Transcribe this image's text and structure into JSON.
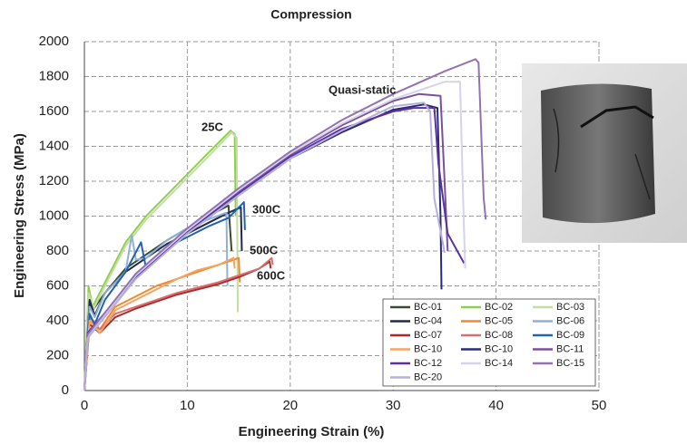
{
  "chart_data": {
    "type": "line",
    "title": "Compression",
    "x_label": "Engineering Strain (%)",
    "y_label": "Engineering Stress (MPa)",
    "xlim": [
      0,
      50
    ],
    "xticks": [
      0,
      10,
      20,
      30,
      40,
      50
    ],
    "ylim": [
      0,
      2000
    ],
    "yticks": [
      0,
      200,
      400,
      600,
      800,
      1000,
      1200,
      1400,
      1600,
      1800,
      2000
    ],
    "grid": true,
    "legend_position": "lower right",
    "annotations": [
      "25C",
      "300C",
      "500C",
      "600C",
      "Quasi-static"
    ],
    "series": [
      {
        "name": "BC-01",
        "color": "#3d4b33",
        "x": [
          0,
          0.4,
          0.8,
          2,
          4,
          6,
          8,
          10,
          12,
          14,
          14.3
        ],
        "values": [
          0,
          520,
          460,
          560,
          700,
          780,
          860,
          930,
          1000,
          1060,
          800
        ]
      },
      {
        "name": "BC-02",
        "color": "#8fcf50",
        "x": [
          0,
          0.4,
          0.8,
          2,
          4,
          6,
          8,
          10,
          12,
          14.2,
          14.6,
          14.7
        ],
        "values": [
          0,
          600,
          480,
          620,
          850,
          1000,
          1120,
          1240,
          1360,
          1490,
          1470,
          1000
        ]
      },
      {
        "name": "BC-03",
        "color": "#c3dea0",
        "x": [
          0,
          0.4,
          0.9,
          2,
          4,
          6,
          8,
          10,
          12,
          14.3,
          14.8,
          14.9
        ],
        "values": [
          0,
          560,
          470,
          600,
          830,
          980,
          1100,
          1220,
          1340,
          1480,
          1450,
          450
        ]
      },
      {
        "name": "BC-04",
        "color": "#1f2b4a",
        "x": [
          0,
          0.5,
          1,
          2,
          4,
          6,
          8,
          10,
          12,
          14,
          15.2,
          15.3
        ],
        "values": [
          0,
          520,
          430,
          560,
          680,
          760,
          840,
          900,
          960,
          1020,
          1050,
          800
        ]
      },
      {
        "name": "BC-05",
        "color": "#f08a2c",
        "x": [
          0,
          0.5,
          1.5,
          3,
          5,
          7,
          9,
          11,
          13,
          15,
          15.1
        ],
        "values": [
          0,
          420,
          350,
          480,
          540,
          600,
          640,
          680,
          720,
          760,
          620
        ]
      },
      {
        "name": "BC-06",
        "color": "#8fb0d8",
        "x": [
          0,
          0.5,
          1,
          2,
          4,
          4.6,
          5,
          6,
          8,
          10,
          12,
          13.8,
          13.9
        ],
        "values": [
          0,
          480,
          420,
          560,
          680,
          890,
          750,
          760,
          860,
          930,
          980,
          1020,
          600
        ]
      },
      {
        "name": "BC-07",
        "color": "#b02828",
        "x": [
          0,
          0.5,
          1.5,
          3,
          5,
          7,
          9,
          11,
          13,
          15,
          17,
          18,
          18.1
        ],
        "values": [
          0,
          380,
          330,
          420,
          470,
          510,
          550,
          580,
          610,
          650,
          700,
          740,
          700
        ]
      },
      {
        "name": "BC-08",
        "color": "#d87070",
        "x": [
          0,
          0.5,
          1.5,
          3,
          5,
          7,
          9,
          11,
          13,
          15,
          17,
          18.2,
          18.3
        ],
        "values": [
          0,
          400,
          350,
          440,
          480,
          520,
          560,
          590,
          620,
          660,
          700,
          760,
          720
        ]
      },
      {
        "name": "BC-09",
        "color": "#2262b0",
        "x": [
          0,
          0.5,
          1,
          2,
          4,
          5.5,
          6,
          8,
          10,
          12,
          14,
          15.5,
          15.6
        ],
        "values": [
          0,
          440,
          380,
          520,
          680,
          850,
          700,
          820,
          880,
          940,
          990,
          1080,
          920
        ]
      },
      {
        "name": "BC-10",
        "color": "#f5a460",
        "x": [
          0,
          0.5,
          1.5,
          3,
          5,
          7,
          9,
          11,
          13,
          14.5,
          14.6
        ],
        "values": [
          0,
          400,
          330,
          460,
          520,
          580,
          640,
          690,
          720,
          760,
          700
        ]
      },
      {
        "name": "BC-10",
        "color": "#2a2a7a",
        "x": [
          0,
          0.3,
          5,
          10,
          15,
          20,
          25,
          30,
          33,
          34.3,
          34.6,
          34.7
        ],
        "values": [
          0,
          300,
          650,
          900,
          1120,
          1330,
          1480,
          1610,
          1640,
          1620,
          1000,
          580
        ]
      },
      {
        "name": "BC-11",
        "color": "#7a509e",
        "x": [
          0,
          0.3,
          5,
          10,
          15,
          20,
          25,
          30,
          32.5,
          34.6,
          35,
          35.3
        ],
        "values": [
          0,
          320,
          660,
          920,
          1140,
          1350,
          1520,
          1660,
          1700,
          1690,
          1200,
          800
        ]
      },
      {
        "name": "BC-12",
        "color": "#5a32a0",
        "x": [
          0,
          0.3,
          5,
          10,
          15,
          20,
          25,
          30,
          32,
          34,
          34.4,
          35.3,
          36.9
        ],
        "values": [
          0,
          330,
          650,
          910,
          1130,
          1340,
          1500,
          1600,
          1620,
          1620,
          1300,
          900,
          730
        ]
      },
      {
        "name": "BC-14",
        "color": "#d4d4ea",
        "x": [
          0,
          0.3,
          5,
          10,
          15,
          20,
          25,
          30,
          35,
          36.5,
          36.8,
          37
        ],
        "values": [
          0,
          310,
          660,
          920,
          1150,
          1360,
          1530,
          1670,
          1770,
          1770,
          1100,
          700
        ]
      },
      {
        "name": "BC-15",
        "color": "#9272b2",
        "x": [
          0,
          0.3,
          5,
          10,
          15,
          20,
          25,
          30,
          35,
          38,
          38.3,
          38.8,
          39
        ],
        "values": [
          0,
          320,
          670,
          930,
          1160,
          1370,
          1550,
          1700,
          1830,
          1900,
          1880,
          1100,
          980
        ]
      },
      {
        "name": "BC-20",
        "color": "#b8b0dc",
        "x": [
          0,
          0.3,
          5,
          10,
          15,
          20,
          25,
          30,
          33,
          33.6,
          34,
          35
        ],
        "values": [
          0,
          300,
          640,
          900,
          1120,
          1330,
          1490,
          1630,
          1650,
          1600,
          1100,
          790
        ]
      }
    ]
  }
}
